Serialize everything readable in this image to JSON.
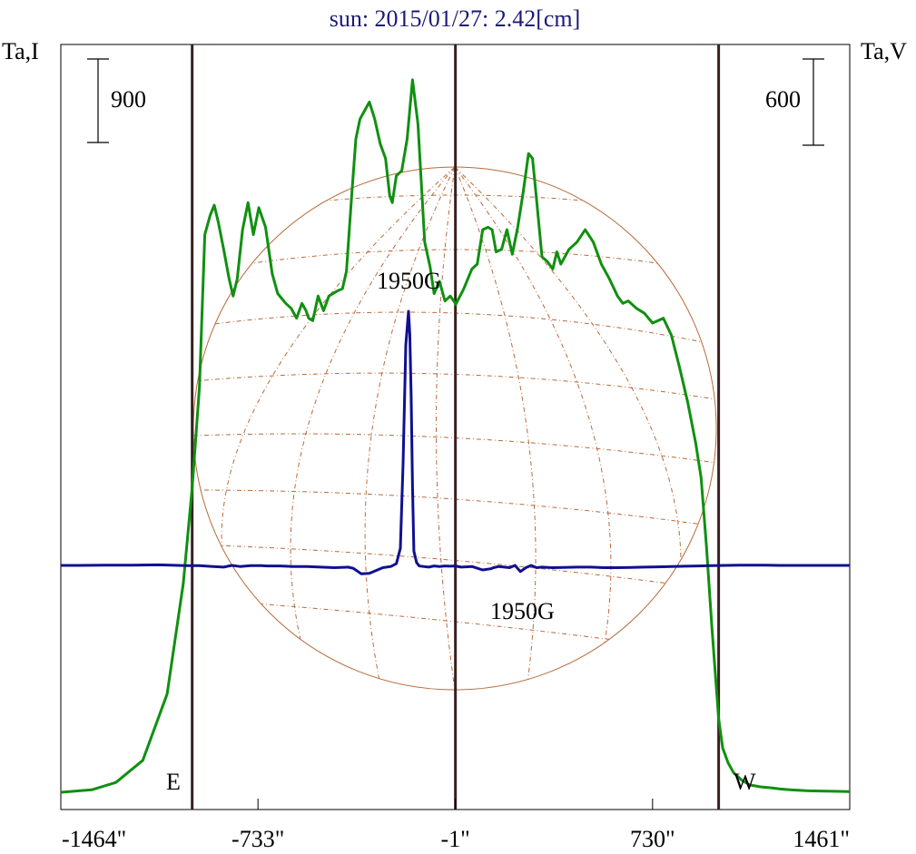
{
  "chart_data": {
    "type": "line",
    "title": "sun: 2015/01/27: 2.42[cm]",
    "left_axis_label": "Ta,I",
    "right_axis_label": "Ta,V",
    "x_ticks": [
      {
        "value": -1464,
        "label": "-1464\""
      },
      {
        "value": -733,
        "label": "-733\""
      },
      {
        "value": -1,
        "label": "-1\""
      },
      {
        "value": 730,
        "label": "730\""
      },
      {
        "value": 1461,
        "label": "1461\""
      }
    ],
    "xlim": [
      -1464,
      1461
    ],
    "scale_bars": {
      "left": {
        "label": "900",
        "value": 900
      },
      "right": {
        "label": "600",
        "value": 600
      }
    },
    "markers": [
      {
        "name": "limb-east",
        "x": -977,
        "label": "E"
      },
      {
        "name": "center",
        "x": -1,
        "label": ""
      },
      {
        "name": "limb-west",
        "x": 975,
        "label": "W"
      }
    ],
    "annotations": [
      {
        "name": "intensity-1950g",
        "text": "1950G"
      },
      {
        "name": "polarization-1950g",
        "text": "1950G"
      }
    ],
    "series": [
      {
        "key": "intensity",
        "color": "#109010",
        "x": [
          -1464,
          -1350,
          -1260,
          -1160,
          -1070,
          -1010,
          -977,
          -950,
          -930,
          -910,
          -895,
          -880,
          -860,
          -840,
          -825,
          -810,
          -790,
          -770,
          -750,
          -730,
          -705,
          -680,
          -660,
          -630,
          -610,
          -590,
          -570,
          -555,
          -545,
          -530,
          -520,
          -510,
          -490,
          -470,
          -440,
          -420,
          -405,
          -385,
          -370,
          -355,
          -335,
          -320,
          -300,
          -280,
          -260,
          -245,
          -235,
          -220,
          -200,
          -180,
          -160,
          -140,
          -115,
          -95,
          -80,
          -60,
          -40,
          -20,
          -1,
          0,
          30,
          60,
          80,
          100,
          120,
          135,
          150,
          170,
          190,
          210,
          230,
          250,
          270,
          285,
          300,
          320,
          340,
          360,
          375,
          390,
          420,
          450,
          480,
          510,
          540,
          570,
          600,
          620,
          640,
          670,
          700,
          730,
          770,
          800,
          830,
          860,
          890,
          910,
          930,
          950,
          975,
          990,
          1010,
          1030,
          1060,
          1090,
          1130,
          1170,
          1200,
          1240,
          1270,
          1310,
          1350,
          1400,
          1461
        ],
        "y": [
          0,
          10,
          40,
          130,
          400,
          850,
          1240,
          1650,
          2270,
          2350,
          2390,
          2320,
          2210,
          2090,
          2020,
          2090,
          2290,
          2400,
          2270,
          2380,
          2300,
          2110,
          2030,
          1990,
          1970,
          1930,
          1990,
          1960,
          1930,
          1920,
          1970,
          2020,
          1960,
          2020,
          2040,
          2050,
          2120,
          2440,
          2660,
          2740,
          2780,
          2810,
          2740,
          2640,
          2580,
          2430,
          2400,
          2510,
          2530,
          2660,
          2900,
          2720,
          2240,
          2140,
          2030,
          2080,
          2000,
          2020,
          1990,
          1985,
          2050,
          2130,
          2150,
          2290,
          2300,
          2290,
          2200,
          2210,
          2290,
          2190,
          2300,
          2440,
          2600,
          2580,
          2410,
          2180,
          2160,
          2130,
          2200,
          2150,
          2210,
          2240,
          2290,
          2240,
          2150,
          2090,
          2020,
          1990,
          2000,
          1970,
          1950,
          1910,
          1930,
          1860,
          1730,
          1590,
          1420,
          1280,
          1000,
          670,
          300,
          180,
          120,
          80,
          50,
          30,
          22,
          18,
          14,
          10,
          8,
          6,
          5,
          4,
          3
        ]
      },
      {
        "key": "polarization",
        "color": "#101090",
        "x": [
          -1464,
          -1400,
          -1300,
          -1200,
          -1100,
          -1000,
          -950,
          -900,
          -860,
          -830,
          -800,
          -760,
          -720,
          -700,
          -650,
          -600,
          -550,
          -500,
          -450,
          -400,
          -380,
          -350,
          -320,
          -300,
          -270,
          -240,
          -220,
          -205,
          -195,
          -185,
          -175,
          -170,
          -165,
          -160,
          -155,
          -145,
          -135,
          -120,
          -100,
          -80,
          -60,
          -40,
          -20,
          -1,
          20,
          60,
          100,
          130,
          140,
          160,
          200,
          220,
          240,
          260,
          280,
          300,
          320,
          340,
          360,
          400,
          450,
          500,
          550,
          600,
          650,
          700,
          750,
          800,
          850,
          900,
          950,
          1000,
          1050,
          1100,
          1150,
          1200,
          1250,
          1300,
          1350,
          1400,
          1461
        ],
        "y": [
          0,
          0,
          5,
          5,
          10,
          -5,
          -5,
          -20,
          -30,
          0,
          -20,
          -5,
          -5,
          -10,
          -10,
          -20,
          -20,
          -30,
          -40,
          -30,
          -50,
          -150,
          -140,
          -100,
          -40,
          -20,
          30,
          300,
          1800,
          3900,
          4500,
          4100,
          3000,
          1400,
          250,
          50,
          -10,
          -20,
          -30,
          -10,
          -20,
          -10,
          -15,
          -10,
          -30,
          -20,
          -80,
          -60,
          -40,
          -20,
          -40,
          0,
          -110,
          -40,
          0,
          -40,
          -30,
          -35,
          -40,
          -35,
          -30,
          -30,
          -40,
          -40,
          -35,
          -30,
          -25,
          -20,
          -15,
          -10,
          -5,
          0,
          5,
          5,
          5,
          0,
          0,
          0,
          0,
          0,
          0
        ]
      }
    ]
  }
}
